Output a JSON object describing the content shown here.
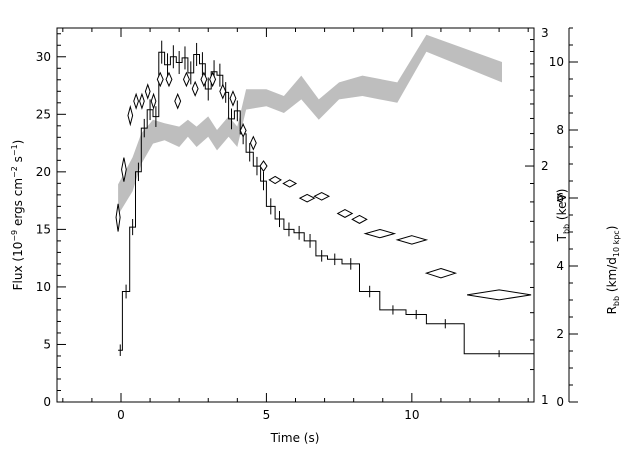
{
  "chart_data": {
    "type": "line",
    "title": "",
    "x_axis": {
      "label": "Time (s)",
      "range": [
        -2.2,
        14.2
      ],
      "ticks": [
        "0",
        "5",
        "10"
      ],
      "tick_values": [
        0,
        5,
        10
      ]
    },
    "y_axis_left": {
      "label_parts": [
        "Flux (10",
        "−9",
        " ergs cm",
        "−2",
        " s",
        "−1",
        ")"
      ],
      "range": [
        0,
        32.5
      ],
      "ticks": [
        "0",
        "5",
        "10",
        "15",
        "20",
        "25",
        "30"
      ],
      "tick_values": [
        0,
        5,
        10,
        15,
        20,
        25,
        30
      ]
    },
    "y_axis_inner_right": {
      "label": "T",
      "label_sub": "bb",
      "label_unit": " (keV)",
      "scale": "log",
      "range": [
        1,
        3
      ],
      "ticks": [
        "1",
        "2",
        "3"
      ],
      "tick_values": [
        1,
        2,
        3
      ]
    },
    "y_axis_outer_right": {
      "label": "R",
      "label_sub": "bb",
      "label_unit_parts": [
        " (km/d",
        "10 kpc",
        ")"
      ],
      "range": [
        0,
        11
      ],
      "ticks": [
        "0",
        "2",
        "4",
        "6",
        "8",
        "10"
      ],
      "tick_values": [
        0,
        2,
        4,
        6,
        8,
        10
      ]
    },
    "grid": false,
    "series": [
      {
        "style": "step-with-error-bars",
        "axis": "left",
        "bins": [
          {
            "x0": -0.1,
            "x1": 0.05,
            "y": 4.5,
            "err": 0.5
          },
          {
            "x0": 0.05,
            "x1": 0.3,
            "y": 9.6,
            "err": 0.6
          },
          {
            "x0": 0.3,
            "x1": 0.5,
            "y": 15.2,
            "err": 0.7
          },
          {
            "x0": 0.5,
            "x1": 0.7,
            "y": 20.0,
            "err": 0.8
          },
          {
            "x0": 0.7,
            "x1": 0.9,
            "y": 23.8,
            "err": 0.8
          },
          {
            "x0": 0.9,
            "x1": 1.1,
            "y": 25.4,
            "err": 0.9
          },
          {
            "x0": 1.1,
            "x1": 1.3,
            "y": 24.8,
            "err": 0.9
          },
          {
            "x0": 1.3,
            "x1": 1.5,
            "y": 30.4,
            "err": 1.0
          },
          {
            "x0": 1.5,
            "x1": 1.7,
            "y": 29.3,
            "err": 1.0
          },
          {
            "x0": 1.7,
            "x1": 1.9,
            "y": 30.0,
            "err": 1.0
          },
          {
            "x0": 1.9,
            "x1": 2.1,
            "y": 29.5,
            "err": 1.0
          },
          {
            "x0": 2.1,
            "x1": 2.3,
            "y": 29.9,
            "err": 1.0
          },
          {
            "x0": 2.3,
            "x1": 2.5,
            "y": 28.6,
            "err": 1.0
          },
          {
            "x0": 2.5,
            "x1": 2.7,
            "y": 30.2,
            "err": 1.0
          },
          {
            "x0": 2.7,
            "x1": 2.9,
            "y": 29.4,
            "err": 1.0
          },
          {
            "x0": 2.9,
            "x1": 3.1,
            "y": 27.2,
            "err": 1.0
          },
          {
            "x0": 3.1,
            "x1": 3.3,
            "y": 28.7,
            "err": 1.0
          },
          {
            "x0": 3.3,
            "x1": 3.5,
            "y": 28.4,
            "err": 1.0
          },
          {
            "x0": 3.5,
            "x1": 3.7,
            "y": 26.9,
            "err": 0.9
          },
          {
            "x0": 3.7,
            "x1": 3.9,
            "y": 24.6,
            "err": 0.9
          },
          {
            "x0": 3.9,
            "x1": 4.1,
            "y": 25.3,
            "err": 0.9
          },
          {
            "x0": 4.1,
            "x1": 4.3,
            "y": 23.3,
            "err": 0.9
          },
          {
            "x0": 4.3,
            "x1": 4.55,
            "y": 21.7,
            "err": 0.8
          },
          {
            "x0": 4.55,
            "x1": 4.8,
            "y": 20.5,
            "err": 0.8
          },
          {
            "x0": 4.8,
            "x1": 5.0,
            "y": 19.2,
            "err": 0.8
          },
          {
            "x0": 5.0,
            "x1": 5.3,
            "y": 17.0,
            "err": 0.7
          },
          {
            "x0": 5.3,
            "x1": 5.6,
            "y": 15.9,
            "err": 0.7
          },
          {
            "x0": 5.6,
            "x1": 5.95,
            "y": 15.0,
            "err": 0.6
          },
          {
            "x0": 5.95,
            "x1": 6.3,
            "y": 14.7,
            "err": 0.6
          },
          {
            "x0": 6.3,
            "x1": 6.7,
            "y": 14.0,
            "err": 0.6
          },
          {
            "x0": 6.7,
            "x1": 7.1,
            "y": 12.7,
            "err": 0.5
          },
          {
            "x0": 7.1,
            "x1": 7.6,
            "y": 12.4,
            "err": 0.5
          },
          {
            "x0": 7.6,
            "x1": 8.2,
            "y": 12.0,
            "err": 0.5
          },
          {
            "x0": 8.2,
            "x1": 8.9,
            "y": 9.6,
            "err": 0.5
          },
          {
            "x0": 8.9,
            "x1": 9.8,
            "y": 8.0,
            "err": 0.4
          },
          {
            "x0": 9.8,
            "x1": 10.5,
            "y": 7.6,
            "err": 0.4
          },
          {
            "x0": 10.5,
            "x1": 11.8,
            "y": 6.8,
            "err": 0.4
          },
          {
            "x0": 11.8,
            "x1": 14.2,
            "y": 4.2,
            "err": 0.3
          }
        ]
      },
      {
        "style": "diamonds",
        "axis": "inner_right",
        "points": [
          {
            "x": -0.1,
            "y": 1.72,
            "dx": 0.07,
            "ylo": 1.65,
            "yhi": 1.79
          },
          {
            "x": 0.1,
            "y": 1.98,
            "dx": 0.08,
            "ylo": 1.91,
            "yhi": 2.05
          },
          {
            "x": 0.32,
            "y": 2.32,
            "dx": 0.08,
            "ylo": 2.26,
            "yhi": 2.38
          },
          {
            "x": 0.52,
            "y": 2.42,
            "dx": 0.08,
            "ylo": 2.37,
            "yhi": 2.47
          },
          {
            "x": 0.72,
            "y": 2.42,
            "dx": 0.08,
            "ylo": 2.37,
            "yhi": 2.47
          },
          {
            "x": 0.92,
            "y": 2.49,
            "dx": 0.08,
            "ylo": 2.44,
            "yhi": 2.54
          },
          {
            "x": 1.12,
            "y": 2.42,
            "dx": 0.08,
            "ylo": 2.37,
            "yhi": 2.47
          },
          {
            "x": 1.35,
            "y": 2.58,
            "dx": 0.1,
            "ylo": 2.53,
            "yhi": 2.63
          },
          {
            "x": 1.65,
            "y": 2.58,
            "dx": 0.1,
            "ylo": 2.53,
            "yhi": 2.63
          },
          {
            "x": 1.95,
            "y": 2.42,
            "dx": 0.1,
            "ylo": 2.37,
            "yhi": 2.47
          },
          {
            "x": 2.25,
            "y": 2.58,
            "dx": 0.1,
            "ylo": 2.53,
            "yhi": 2.63
          },
          {
            "x": 2.55,
            "y": 2.51,
            "dx": 0.1,
            "ylo": 2.46,
            "yhi": 2.56
          },
          {
            "x": 2.85,
            "y": 2.58,
            "dx": 0.1,
            "ylo": 2.53,
            "yhi": 2.63
          },
          {
            "x": 3.15,
            "y": 2.58,
            "dx": 0.1,
            "ylo": 2.53,
            "yhi": 2.63
          },
          {
            "x": 3.5,
            "y": 2.49,
            "dx": 0.1,
            "ylo": 2.44,
            "yhi": 2.54
          },
          {
            "x": 3.85,
            "y": 2.44,
            "dx": 0.1,
            "ylo": 2.39,
            "yhi": 2.49
          },
          {
            "x": 4.2,
            "y": 2.22,
            "dx": 0.1,
            "ylo": 2.18,
            "yhi": 2.26
          },
          {
            "x": 4.55,
            "y": 2.14,
            "dx": 0.1,
            "ylo": 2.1,
            "yhi": 2.18
          },
          {
            "x": 4.9,
            "y": 2.0,
            "dx": 0.12,
            "ylo": 1.97,
            "yhi": 2.03
          },
          {
            "x": 5.3,
            "y": 1.92,
            "dx": 0.2,
            "ylo": 1.9,
            "yhi": 1.94
          },
          {
            "x": 5.8,
            "y": 1.9,
            "dx": 0.22,
            "ylo": 1.88,
            "yhi": 1.92
          },
          {
            "x": 6.4,
            "y": 1.82,
            "dx": 0.25,
            "ylo": 1.8,
            "yhi": 1.84
          },
          {
            "x": 6.9,
            "y": 1.83,
            "dx": 0.25,
            "ylo": 1.81,
            "yhi": 1.85
          },
          {
            "x": 7.7,
            "y": 1.74,
            "dx": 0.25,
            "ylo": 1.72,
            "yhi": 1.76
          },
          {
            "x": 8.2,
            "y": 1.71,
            "dx": 0.25,
            "ylo": 1.69,
            "yhi": 1.73
          },
          {
            "x": 8.9,
            "y": 1.64,
            "dx": 0.5,
            "ylo": 1.62,
            "yhi": 1.66
          },
          {
            "x": 10.0,
            "y": 1.61,
            "dx": 0.5,
            "ylo": 1.59,
            "yhi": 1.63
          },
          {
            "x": 11.0,
            "y": 1.46,
            "dx": 0.5,
            "ylo": 1.44,
            "yhi": 1.48
          },
          {
            "x": 13.0,
            "y": 1.37,
            "dx": 1.1,
            "ylo": 1.35,
            "yhi": 1.39
          }
        ]
      },
      {
        "style": "shaded-band",
        "axis": "outer_right",
        "color": "#bebebe",
        "points": [
          {
            "x": -0.1,
            "lo": 5.5,
            "hi": 6.4
          },
          {
            "x": 0.4,
            "lo": 6.2,
            "hi": 7.2
          },
          {
            "x": 0.7,
            "lo": 7.0,
            "hi": 7.9
          },
          {
            "x": 1.1,
            "lo": 7.6,
            "hi": 8.3
          },
          {
            "x": 1.5,
            "lo": 7.7,
            "hi": 8.2
          },
          {
            "x": 2.0,
            "lo": 7.5,
            "hi": 8.1
          },
          {
            "x": 2.3,
            "lo": 7.8,
            "hi": 8.3
          },
          {
            "x": 2.6,
            "lo": 7.5,
            "hi": 8.1
          },
          {
            "x": 3.0,
            "lo": 7.8,
            "hi": 8.4
          },
          {
            "x": 3.3,
            "lo": 7.4,
            "hi": 8.0
          },
          {
            "x": 3.7,
            "lo": 7.8,
            "hi": 8.4
          },
          {
            "x": 4.0,
            "lo": 7.5,
            "hi": 8.1
          },
          {
            "x": 4.3,
            "lo": 8.6,
            "hi": 9.2
          },
          {
            "x": 5.0,
            "lo": 8.7,
            "hi": 9.2
          },
          {
            "x": 5.6,
            "lo": 8.5,
            "hi": 9.0
          },
          {
            "x": 6.2,
            "lo": 8.9,
            "hi": 9.6
          },
          {
            "x": 6.8,
            "lo": 8.3,
            "hi": 8.9
          },
          {
            "x": 7.5,
            "lo": 8.9,
            "hi": 9.4
          },
          {
            "x": 8.3,
            "lo": 9.0,
            "hi": 9.6
          },
          {
            "x": 9.5,
            "lo": 8.8,
            "hi": 9.4
          },
          {
            "x": 10.5,
            "lo": 10.3,
            "hi": 10.8
          },
          {
            "x": 13.1,
            "lo": 9.4,
            "hi": 10.0
          }
        ]
      }
    ]
  }
}
